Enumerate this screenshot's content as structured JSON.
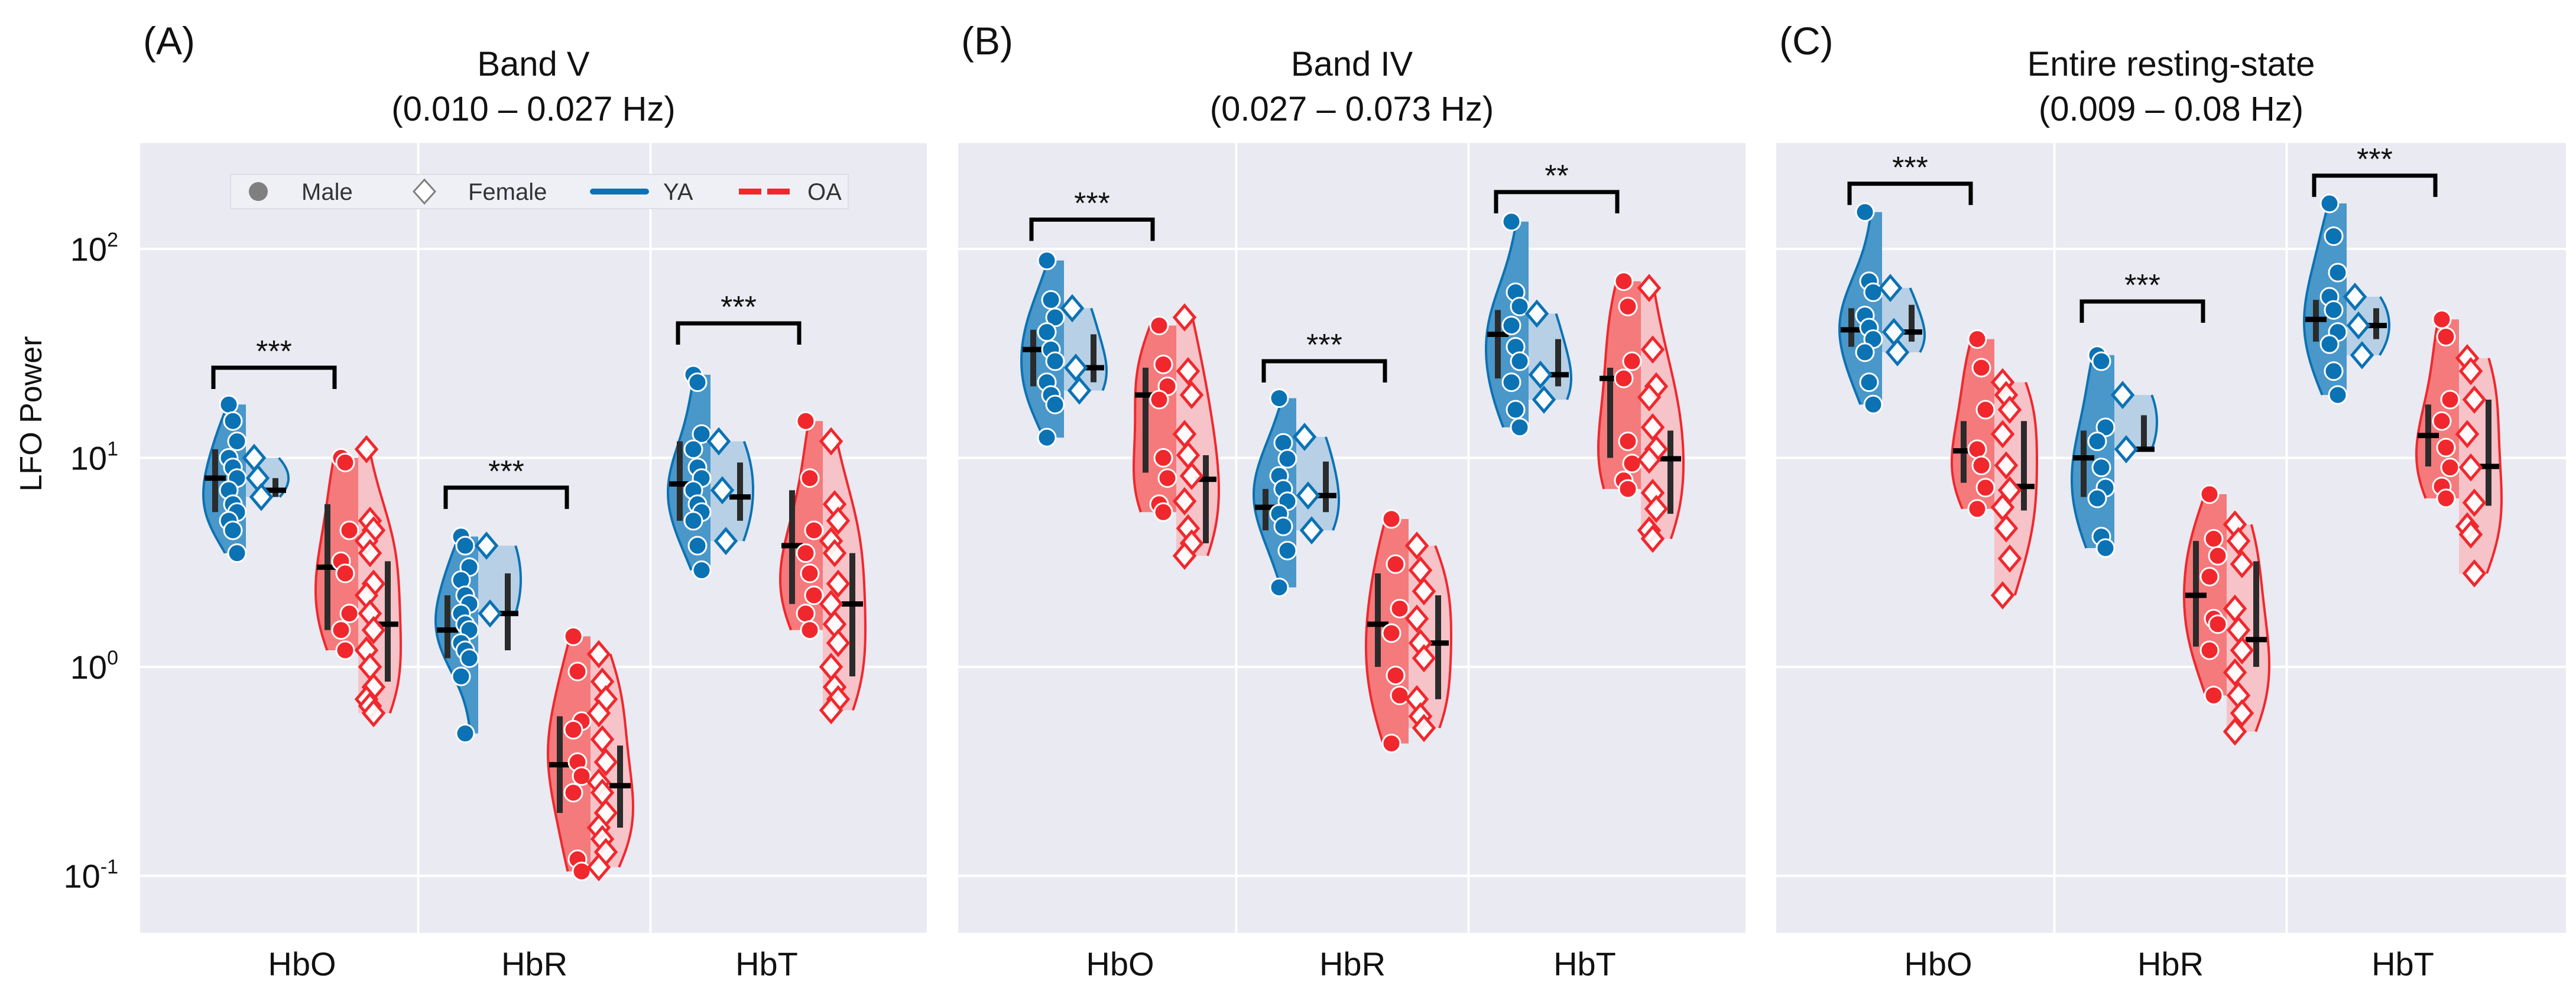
{
  "colors": {
    "ya": "#0b72b4",
    "oa": "#f0282d",
    "ya_male_fill": "#4a97c9",
    "ya_female_fill": "#b7d0e6",
    "oa_male_fill": "#f47a7c",
    "oa_female_fill": "#f5c3c8",
    "plot_bg": "#eaeaf2",
    "grid": "#ffffff",
    "iqr_bar": "#2b2b2b",
    "median": "#000000"
  },
  "legend": {
    "placement": "top",
    "entries": [
      {
        "label": "Male",
        "marker": "circle",
        "color": "#7f7f7f"
      },
      {
        "label": "Female",
        "marker": "diamond",
        "color": "#7f7f7f"
      },
      {
        "label": "YA",
        "marker": "solid-line",
        "color": "#0b72b4"
      },
      {
        "label": "OA",
        "marker": "dashed-line",
        "color": "#f0282d"
      }
    ]
  },
  "yaxis": {
    "label": "LFO Power",
    "scale": "log",
    "ylim": [
      0.053,
      325
    ],
    "ticks": [
      {
        "value": 100,
        "base": "10",
        "exp": "2"
      },
      {
        "value": 10,
        "base": "10",
        "exp": "1"
      },
      {
        "value": 1,
        "base": "10",
        "exp": "0"
      },
      {
        "value": 0.1,
        "base": "10",
        "exp": "-1"
      }
    ]
  },
  "chart_data": [
    {
      "type": "violin",
      "panel": "(A)",
      "title": [
        "Band V",
        "(0.010 – 0.027 Hz)"
      ],
      "ylabel": "LFO Power",
      "yscale": "log",
      "ylim": [
        0.053,
        325
      ],
      "grid": true,
      "categories": [
        "HbO",
        "HbR",
        "HbT"
      ],
      "groups": {
        "HbO": {
          "YA": {
            "Male": {
              "values": [
                18,
                15,
                12,
                10,
                9,
                8,
                7,
                6,
                5.5,
                5,
                4.5,
                3.5
              ],
              "median": 8,
              "iqr": [
                5.5,
                11
              ]
            },
            "Female": {
              "values": [
                10,
                8,
                6.5
              ],
              "median": 7,
              "iqr": [
                6.5,
                8
              ]
            }
          },
          "OA": {
            "Male": {
              "values": [
                10,
                9.5,
                4.5,
                3.2,
                2.8,
                1.8,
                1.5,
                1.2
              ],
              "median": 3,
              "iqr": [
                1.5,
                6
              ]
            },
            "Female": {
              "values": [
                11,
                5,
                4.5,
                4,
                3.5,
                2.5,
                2.2,
                1.8,
                1.5,
                1.2,
                1.0,
                0.8,
                0.7,
                0.65,
                0.6
              ],
              "median": 1.6,
              "iqr": [
                0.85,
                3.2
              ]
            }
          },
          "significance": {
            "label": "***",
            "level": 27
          }
        },
        "HbR": {
          "YA": {
            "Male": {
              "values": [
                4.2,
                3.8,
                3.0,
                2.6,
                2.2,
                2.0,
                1.8,
                1.6,
                1.5,
                1.3,
                1.2,
                1.1,
                0.9,
                0.48
              ],
              "median": 1.5,
              "iqr": [
                1.1,
                2.2
              ]
            },
            "Female": {
              "values": [
                3.8,
                1.8
              ],
              "median": 1.8,
              "iqr": [
                1.2,
                2.8
              ]
            }
          },
          "OA": {
            "Male": {
              "values": [
                1.4,
                0.95,
                0.55,
                0.5,
                0.35,
                0.3,
                0.25,
                0.12,
                0.105
              ],
              "median": 0.34,
              "iqr": [
                0.2,
                0.58
              ]
            },
            "Female": {
              "values": [
                1.15,
                0.85,
                0.7,
                0.6,
                0.45,
                0.35,
                0.28,
                0.25,
                0.2,
                0.17,
                0.15,
                0.13,
                0.11
              ],
              "median": 0.27,
              "iqr": [
                0.17,
                0.42
              ]
            }
          },
          "significance": {
            "label": "***",
            "level": 7.2
          }
        },
        "HbT": {
          "YA": {
            "Male": {
              "values": [
                25,
                23,
                13,
                11,
                9,
                8,
                7,
                6,
                5.5,
                5,
                3.8,
                2.9
              ],
              "median": 7.5,
              "iqr": [
                5,
                12
              ]
            },
            "Female": {
              "values": [
                12,
                7,
                4
              ],
              "median": 6.5,
              "iqr": [
                5,
                9.5
              ]
            }
          },
          "OA": {
            "Male": {
              "values": [
                15,
                8,
                4.5,
                3.5,
                2.8,
                2.2,
                1.8,
                1.5
              ],
              "median": 3.8,
              "iqr": [
                2,
                7
              ]
            },
            "Female": {
              "values": [
                12,
                6,
                5,
                4,
                3.5,
                2.5,
                2,
                1.6,
                1.3,
                1.0,
                0.8,
                0.7,
                0.62
              ],
              "median": 2,
              "iqr": [
                0.9,
                3.5
              ]
            }
          },
          "significance": {
            "label": "***",
            "level": 44
          }
        }
      }
    },
    {
      "type": "violin",
      "panel": "(B)",
      "title": [
        "Band IV",
        "(0.027 – 0.073 Hz)"
      ],
      "yscale": "log",
      "ylim": [
        0.053,
        325
      ],
      "grid": true,
      "categories": [
        "HbO",
        "HbR",
        "HbT"
      ],
      "groups": {
        "HbO": {
          "YA": {
            "Male": {
              "values": [
                88,
                57,
                47,
                40,
                33,
                29,
                23,
                20,
                18,
                12.5
              ],
              "median": 33,
              "iqr": [
                22,
                41
              ]
            },
            "Female": {
              "values": [
                52,
                27,
                21
              ],
              "median": 27,
              "iqr": [
                23,
                39
              ]
            }
          },
          "OA": {
            "Male": {
              "values": [
                43,
                28,
                22,
                19,
                10,
                8,
                6,
                5.5
              ],
              "median": 20,
              "iqr": [
                8.5,
                27
              ]
            },
            "Female": {
              "values": [
                47,
                26,
                20,
                13,
                10.3,
                8.2,
                6.2,
                4.6,
                3.9,
                3.4
              ],
              "median": 7.9,
              "iqr": [
                3.9,
                10.3
              ]
            }
          },
          "significance": {
            "label": "***",
            "level": 138
          }
        },
        "HbR": {
          "YA": {
            "Male": {
              "values": [
                19.3,
                11.8,
                9.9,
                8.2,
                7.1,
                6.2,
                5.4,
                4.7,
                3.6,
                2.4
              ],
              "median": 5.8,
              "iqr": [
                4.5,
                7.1
              ]
            },
            "Female": {
              "values": [
                12.6,
                6.6,
                4.5
              ],
              "median": 6.6,
              "iqr": [
                5.5,
                9.6
              ]
            }
          },
          "OA": {
            "Male": {
              "values": [
                5.1,
                3.1,
                1.9,
                1.45,
                0.91,
                0.73,
                0.43
              ],
              "median": 1.6,
              "iqr": [
                1.0,
                2.8
              ]
            },
            "Female": {
              "values": [
                3.8,
                2.9,
                2.3,
                1.7,
                1.3,
                1.1,
                0.7,
                0.58,
                0.51
              ],
              "median": 1.3,
              "iqr": [
                0.7,
                2.2
              ]
            }
          },
          "significance": {
            "label": "***",
            "level": 29
          }
        },
        "HbT": {
          "YA": {
            "Male": {
              "values": [
                135,
                62,
                53,
                43,
                34,
                29,
                23,
                17,
                14
              ],
              "median": 39,
              "iqr": [
                24,
                51
              ]
            },
            "Female": {
              "values": [
                49,
                25,
                19
              ],
              "median": 25,
              "iqr": [
                22,
                37
              ]
            }
          },
          "OA": {
            "Male": {
              "values": [
                70,
                53,
                29,
                24,
                12,
                9.4,
                7.8,
                7.1
              ],
              "median": 24,
              "iqr": [
                10,
                27
              ]
            },
            "Female": {
              "values": [
                65,
                33,
                22,
                19.5,
                14,
                11,
                9.8,
                6.8,
                5.7,
                4.5,
                4.1
              ],
              "median": 9.9,
              "iqr": [
                5.4,
                13.5
              ]
            }
          },
          "significance": {
            "label": "**",
            "level": 187
          }
        }
      }
    },
    {
      "type": "violin",
      "panel": "(C)",
      "title": [
        "Entire resting-state",
        "(0.009 – 0.08 Hz)"
      ],
      "yscale": "log",
      "ylim": [
        0.053,
        325
      ],
      "grid": true,
      "categories": [
        "HbO",
        "HbR",
        "HbT"
      ],
      "groups": {
        "HbO": {
          "YA": {
            "Male": {
              "values": [
                150,
                70,
                62,
                48,
                42,
                37,
                32,
                23,
                18
              ],
              "median": 41,
              "iqr": [
                34,
                52
              ]
            },
            "Female": {
              "values": [
                65,
                40,
                32
              ],
              "median": 40,
              "iqr": [
                36,
                54
              ]
            }
          },
          "OA": {
            "Male": {
              "values": [
                37,
                27,
                17,
                11,
                9.2,
                7.2,
                5.7
              ],
              "median": 10.8,
              "iqr": [
                7.6,
                15
              ]
            },
            "Female": {
              "values": [
                23,
                20,
                17,
                13,
                9.2,
                7,
                5.8,
                4.6,
                3.3,
                2.2
              ],
              "median": 7.3,
              "iqr": [
                5.6,
                15
              ]
            }
          },
          "significance": {
            "label": "***",
            "level": 205
          }
        },
        "HbR": {
          "YA": {
            "Male": {
              "values": [
                31,
                29,
                14,
                12,
                9,
                7.2,
                6.4,
                4.2,
                3.7
              ],
              "median": 10,
              "iqr": [
                6.5,
                13.5
              ]
            },
            "Female": {
              "values": [
                20,
                11
              ],
              "median": 11,
              "iqr": [
                11,
                16
              ]
            }
          },
          "OA": {
            "Male": {
              "values": [
                6.7,
                4.1,
                3.4,
                2.7,
                1.7,
                1.6,
                1.2,
                0.73
              ],
              "median": 2.2,
              "iqr": [
                1.25,
                4
              ]
            },
            "Female": {
              "values": [
                4.8,
                4.0,
                3.1,
                1.9,
                1.5,
                1.2,
                0.94,
                0.73,
                0.6,
                0.49
              ],
              "median": 1.35,
              "iqr": [
                1.0,
                3.2
              ]
            }
          },
          "significance": {
            "label": "***",
            "level": 56
          }
        },
        "HbT": {
          "YA": {
            "Male": {
              "values": [
                165,
                115,
                77,
                59,
                51,
                40,
                35,
                26,
                20
              ],
              "median": 46,
              "iqr": [
                36,
                57
              ]
            },
            "Female": {
              "values": [
                59,
                43,
                31
              ],
              "median": 43,
              "iqr": [
                37,
                52
              ]
            }
          },
          "OA": {
            "Male": {
              "values": [
                46,
                38,
                19,
                15,
                11.2,
                9,
                7.3,
                6.4
              ],
              "median": 12.8,
              "iqr": [
                9.1,
                18
              ]
            },
            "Female": {
              "values": [
                30,
                26,
                19,
                13,
                9,
                6.1,
                4.7,
                4.3,
                2.8
              ],
              "median": 9.1,
              "iqr": [
                5.9,
                19
              ]
            }
          },
          "significance": {
            "label": "***",
            "level": 224
          }
        }
      }
    }
  ]
}
